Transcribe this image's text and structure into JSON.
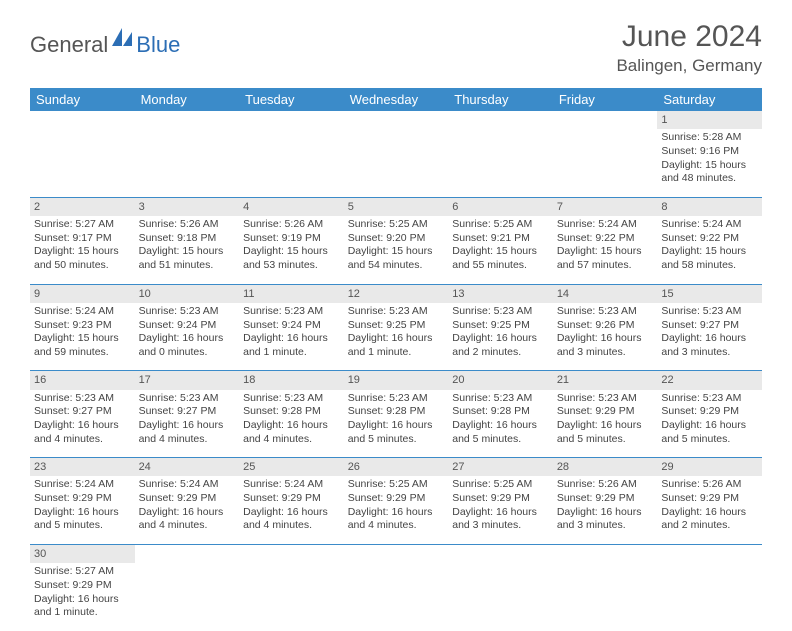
{
  "logo": {
    "general": "General",
    "blue": "Blue"
  },
  "title": "June 2024",
  "location": "Balingen, Germany",
  "colors": {
    "header_bg": "#3b8bc9",
    "header_text": "#ffffff",
    "daynum_bg": "#e9e9e9",
    "border": "#3b8bc9",
    "text": "#444444",
    "logo_gray": "#555555",
    "logo_blue": "#2c6eb5"
  },
  "weekdays": [
    "Sunday",
    "Monday",
    "Tuesday",
    "Wednesday",
    "Thursday",
    "Friday",
    "Saturday"
  ],
  "weeks": [
    [
      null,
      null,
      null,
      null,
      null,
      null,
      {
        "n": "1",
        "sr": "Sunrise: 5:28 AM",
        "ss": "Sunset: 9:16 PM",
        "d1": "Daylight: 15 hours",
        "d2": "and 48 minutes."
      }
    ],
    [
      {
        "n": "2",
        "sr": "Sunrise: 5:27 AM",
        "ss": "Sunset: 9:17 PM",
        "d1": "Daylight: 15 hours",
        "d2": "and 50 minutes."
      },
      {
        "n": "3",
        "sr": "Sunrise: 5:26 AM",
        "ss": "Sunset: 9:18 PM",
        "d1": "Daylight: 15 hours",
        "d2": "and 51 minutes."
      },
      {
        "n": "4",
        "sr": "Sunrise: 5:26 AM",
        "ss": "Sunset: 9:19 PM",
        "d1": "Daylight: 15 hours",
        "d2": "and 53 minutes."
      },
      {
        "n": "5",
        "sr": "Sunrise: 5:25 AM",
        "ss": "Sunset: 9:20 PM",
        "d1": "Daylight: 15 hours",
        "d2": "and 54 minutes."
      },
      {
        "n": "6",
        "sr": "Sunrise: 5:25 AM",
        "ss": "Sunset: 9:21 PM",
        "d1": "Daylight: 15 hours",
        "d2": "and 55 minutes."
      },
      {
        "n": "7",
        "sr": "Sunrise: 5:24 AM",
        "ss": "Sunset: 9:22 PM",
        "d1": "Daylight: 15 hours",
        "d2": "and 57 minutes."
      },
      {
        "n": "8",
        "sr": "Sunrise: 5:24 AM",
        "ss": "Sunset: 9:22 PM",
        "d1": "Daylight: 15 hours",
        "d2": "and 58 minutes."
      }
    ],
    [
      {
        "n": "9",
        "sr": "Sunrise: 5:24 AM",
        "ss": "Sunset: 9:23 PM",
        "d1": "Daylight: 15 hours",
        "d2": "and 59 minutes."
      },
      {
        "n": "10",
        "sr": "Sunrise: 5:23 AM",
        "ss": "Sunset: 9:24 PM",
        "d1": "Daylight: 16 hours",
        "d2": "and 0 minutes."
      },
      {
        "n": "11",
        "sr": "Sunrise: 5:23 AM",
        "ss": "Sunset: 9:24 PM",
        "d1": "Daylight: 16 hours",
        "d2": "and 1 minute."
      },
      {
        "n": "12",
        "sr": "Sunrise: 5:23 AM",
        "ss": "Sunset: 9:25 PM",
        "d1": "Daylight: 16 hours",
        "d2": "and 1 minute."
      },
      {
        "n": "13",
        "sr": "Sunrise: 5:23 AM",
        "ss": "Sunset: 9:25 PM",
        "d1": "Daylight: 16 hours",
        "d2": "and 2 minutes."
      },
      {
        "n": "14",
        "sr": "Sunrise: 5:23 AM",
        "ss": "Sunset: 9:26 PM",
        "d1": "Daylight: 16 hours",
        "d2": "and 3 minutes."
      },
      {
        "n": "15",
        "sr": "Sunrise: 5:23 AM",
        "ss": "Sunset: 9:27 PM",
        "d1": "Daylight: 16 hours",
        "d2": "and 3 minutes."
      }
    ],
    [
      {
        "n": "16",
        "sr": "Sunrise: 5:23 AM",
        "ss": "Sunset: 9:27 PM",
        "d1": "Daylight: 16 hours",
        "d2": "and 4 minutes."
      },
      {
        "n": "17",
        "sr": "Sunrise: 5:23 AM",
        "ss": "Sunset: 9:27 PM",
        "d1": "Daylight: 16 hours",
        "d2": "and 4 minutes."
      },
      {
        "n": "18",
        "sr": "Sunrise: 5:23 AM",
        "ss": "Sunset: 9:28 PM",
        "d1": "Daylight: 16 hours",
        "d2": "and 4 minutes."
      },
      {
        "n": "19",
        "sr": "Sunrise: 5:23 AM",
        "ss": "Sunset: 9:28 PM",
        "d1": "Daylight: 16 hours",
        "d2": "and 5 minutes."
      },
      {
        "n": "20",
        "sr": "Sunrise: 5:23 AM",
        "ss": "Sunset: 9:28 PM",
        "d1": "Daylight: 16 hours",
        "d2": "and 5 minutes."
      },
      {
        "n": "21",
        "sr": "Sunrise: 5:23 AM",
        "ss": "Sunset: 9:29 PM",
        "d1": "Daylight: 16 hours",
        "d2": "and 5 minutes."
      },
      {
        "n": "22",
        "sr": "Sunrise: 5:23 AM",
        "ss": "Sunset: 9:29 PM",
        "d1": "Daylight: 16 hours",
        "d2": "and 5 minutes."
      }
    ],
    [
      {
        "n": "23",
        "sr": "Sunrise: 5:24 AM",
        "ss": "Sunset: 9:29 PM",
        "d1": "Daylight: 16 hours",
        "d2": "and 5 minutes."
      },
      {
        "n": "24",
        "sr": "Sunrise: 5:24 AM",
        "ss": "Sunset: 9:29 PM",
        "d1": "Daylight: 16 hours",
        "d2": "and 4 minutes."
      },
      {
        "n": "25",
        "sr": "Sunrise: 5:24 AM",
        "ss": "Sunset: 9:29 PM",
        "d1": "Daylight: 16 hours",
        "d2": "and 4 minutes."
      },
      {
        "n": "26",
        "sr": "Sunrise: 5:25 AM",
        "ss": "Sunset: 9:29 PM",
        "d1": "Daylight: 16 hours",
        "d2": "and 4 minutes."
      },
      {
        "n": "27",
        "sr": "Sunrise: 5:25 AM",
        "ss": "Sunset: 9:29 PM",
        "d1": "Daylight: 16 hours",
        "d2": "and 3 minutes."
      },
      {
        "n": "28",
        "sr": "Sunrise: 5:26 AM",
        "ss": "Sunset: 9:29 PM",
        "d1": "Daylight: 16 hours",
        "d2": "and 3 minutes."
      },
      {
        "n": "29",
        "sr": "Sunrise: 5:26 AM",
        "ss": "Sunset: 9:29 PM",
        "d1": "Daylight: 16 hours",
        "d2": "and 2 minutes."
      }
    ],
    [
      {
        "n": "30",
        "sr": "Sunrise: 5:27 AM",
        "ss": "Sunset: 9:29 PM",
        "d1": "Daylight: 16 hours",
        "d2": "and 1 minute."
      },
      null,
      null,
      null,
      null,
      null,
      null
    ]
  ]
}
